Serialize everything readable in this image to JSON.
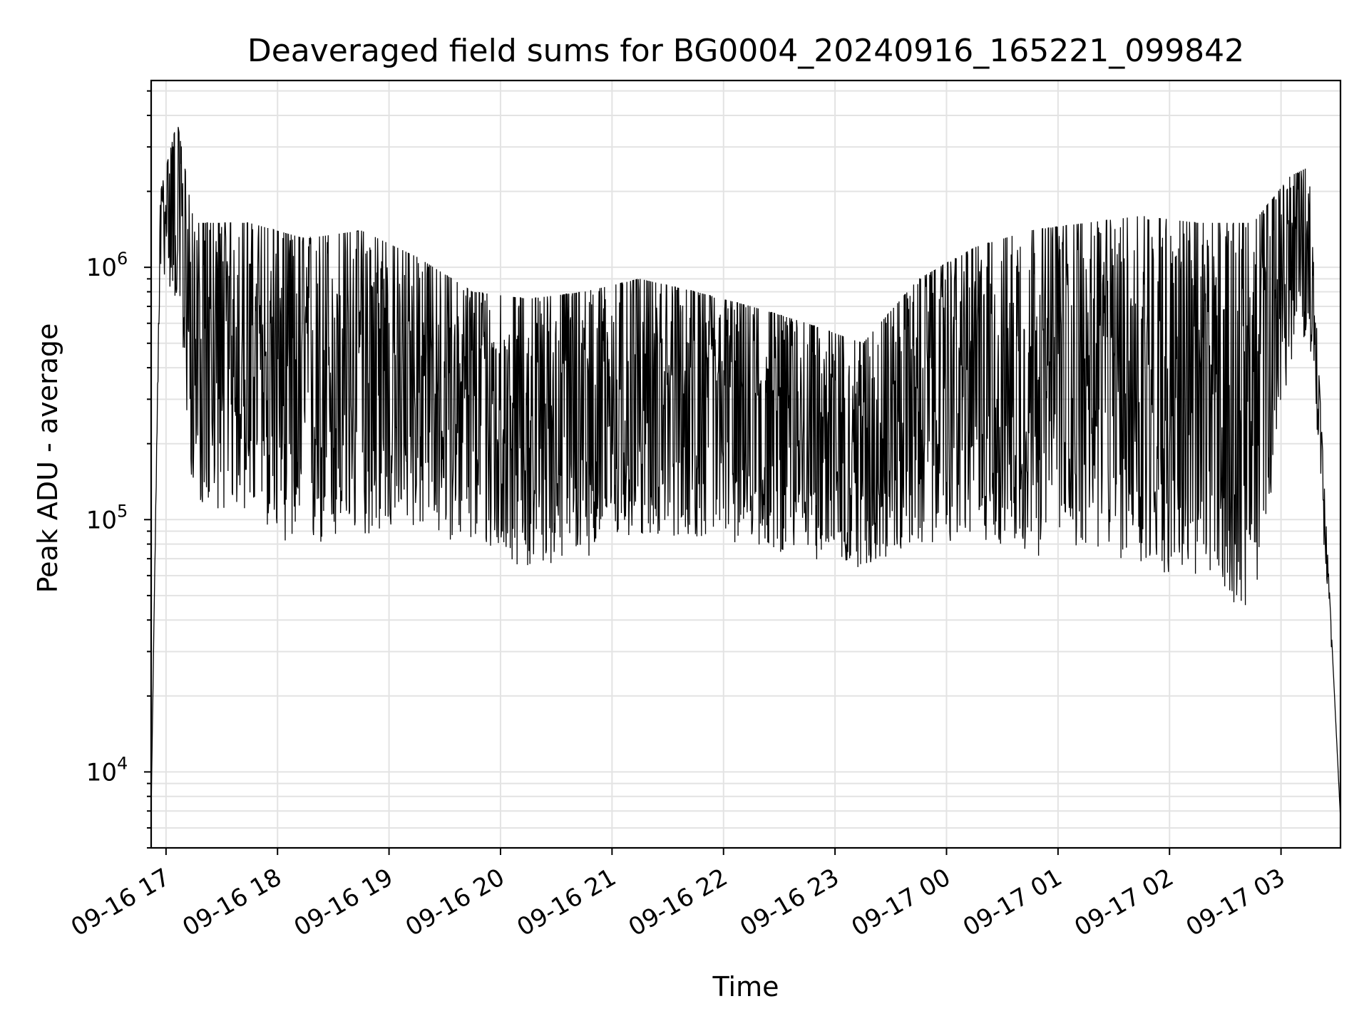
{
  "chart_data": {
    "type": "line",
    "title": "Deaveraged field sums for BG0004_20240916_165221_099842",
    "xlabel": "Time",
    "ylabel": "Peak ADU - average",
    "x_axis": {
      "kind": "datetime",
      "range": [
        "2024-09-16 16:52",
        "2024-09-17 03:32"
      ],
      "tick_labels": [
        "09-16 17",
        "09-16 18",
        "09-16 19",
        "09-16 20",
        "09-16 21",
        "09-16 22",
        "09-16 23",
        "09-17 00",
        "09-17 01",
        "09-17 02",
        "09-17 03"
      ],
      "tick_label_rotation": "30deg"
    },
    "y_axis": {
      "scale": "log",
      "range": [
        5000,
        5500000
      ],
      "tick_values": [
        10000,
        100000,
        1000000
      ],
      "tick_labels": [
        {
          "base": "10",
          "exp": "4"
        },
        {
          "base": "10",
          "exp": "5"
        },
        {
          "base": "10",
          "exp": "6"
        }
      ]
    },
    "grid": true,
    "series": [
      {
        "color": "#000000",
        "note_noise": "dense rapidly-oscillating signal; envelope listed below as (time, lower, upper) in data units",
        "envelope": [
          {
            "t": "2024-09-16 16:52",
            "low": 7000,
            "high": 7000
          },
          {
            "t": "2024-09-16 16:57",
            "low": 700000,
            "high": 2000000
          },
          {
            "t": "2024-09-16 17:06",
            "low": 500000,
            "high": 3800000
          },
          {
            "t": "2024-09-16 17:15",
            "low": 80000,
            "high": 1500000
          },
          {
            "t": "2024-09-16 17:45",
            "low": 75000,
            "high": 1500000
          },
          {
            "t": "2024-09-16 18:15",
            "low": 50000,
            "high": 1300000
          },
          {
            "t": "2024-09-16 18:45",
            "low": 60000,
            "high": 1400000
          },
          {
            "t": "2024-09-16 19:15",
            "low": 65000,
            "high": 1100000
          },
          {
            "t": "2024-09-16 19:45",
            "low": 55000,
            "high": 800000
          },
          {
            "t": "2024-09-16 20:15",
            "low": 45000,
            "high": 750000
          },
          {
            "t": "2024-09-16 20:45",
            "low": 50000,
            "high": 800000
          },
          {
            "t": "2024-09-16 21:15",
            "low": 60000,
            "high": 900000
          },
          {
            "t": "2024-09-16 21:45",
            "low": 60000,
            "high": 800000
          },
          {
            "t": "2024-09-16 22:15",
            "low": 55000,
            "high": 700000
          },
          {
            "t": "2024-09-16 22:45",
            "low": 50000,
            "high": 600000
          },
          {
            "t": "2024-09-16 23:15",
            "low": 45000,
            "high": 500000
          },
          {
            "t": "2024-09-16 23:45",
            "low": 55000,
            "high": 900000
          },
          {
            "t": "2024-09-17 00:15",
            "low": 60000,
            "high": 1200000
          },
          {
            "t": "2024-09-17 00:45",
            "low": 50000,
            "high": 1400000
          },
          {
            "t": "2024-09-17 01:15",
            "low": 55000,
            "high": 1500000
          },
          {
            "t": "2024-09-17 01:45",
            "low": 45000,
            "high": 1600000
          },
          {
            "t": "2024-09-17 02:15",
            "low": 40000,
            "high": 1500000
          },
          {
            "t": "2024-09-17 02:45",
            "low": 30000,
            "high": 1500000
          },
          {
            "t": "2024-09-17 03:05",
            "low": 300000,
            "high": 2300000
          },
          {
            "t": "2024-09-17 03:15",
            "low": 400000,
            "high": 2500000
          },
          {
            "t": "2024-09-17 03:32",
            "low": 6500,
            "high": 6500
          }
        ]
      }
    ]
  }
}
